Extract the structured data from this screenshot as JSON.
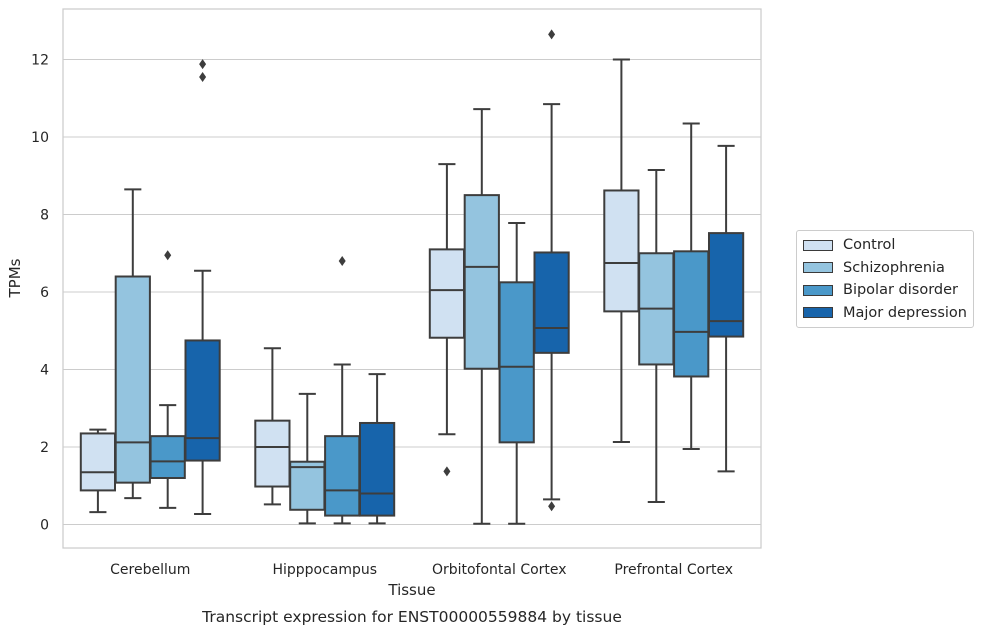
{
  "chart_data": {
    "type": "box",
    "title": "",
    "caption": "Transcript expression for ENST00000559884 by tissue",
    "xlabel": "Tissue",
    "ylabel": "TPMs",
    "ylim": [
      -0.6,
      13.3
    ],
    "yticks": [
      0,
      2,
      4,
      6,
      8,
      10,
      12
    ],
    "grid": true,
    "legend_position": "right",
    "categories": [
      "Cerebellum",
      "Hipppocampus",
      "Orbitofontal Cortex",
      "Prefrontal Cortex"
    ],
    "series": [
      {
        "name": "Control",
        "color": "#d0e1f2",
        "boxes": [
          {
            "whislo": 0.32,
            "q1": 0.88,
            "med": 1.35,
            "q3": 2.35,
            "whishi": 2.45,
            "fliers": []
          },
          {
            "whislo": 0.52,
            "q1": 0.98,
            "med": 2.0,
            "q3": 2.68,
            "whishi": 4.55,
            "fliers": []
          },
          {
            "whislo": 2.33,
            "q1": 4.82,
            "med": 6.05,
            "q3": 7.1,
            "whishi": 9.3,
            "fliers": [
              1.37
            ]
          },
          {
            "whislo": 2.13,
            "q1": 5.5,
            "med": 6.75,
            "q3": 8.62,
            "whishi": 12.0,
            "fliers": []
          }
        ]
      },
      {
        "name": "Schizophrenia",
        "color": "#94c4df",
        "boxes": [
          {
            "whislo": 0.68,
            "q1": 1.08,
            "med": 2.12,
            "q3": 6.4,
            "whishi": 8.65,
            "fliers": []
          },
          {
            "whislo": 0.03,
            "q1": 0.38,
            "med": 1.48,
            "q3": 1.62,
            "whishi": 3.37,
            "fliers": []
          },
          {
            "whislo": 0.02,
            "q1": 4.02,
            "med": 6.65,
            "q3": 8.5,
            "whishi": 10.72,
            "fliers": []
          },
          {
            "whislo": 0.58,
            "q1": 4.13,
            "med": 5.57,
            "q3": 7.0,
            "whishi": 9.15,
            "fliers": []
          }
        ]
      },
      {
        "name": "Bipolar disorder",
        "color": "#4a98c9",
        "boxes": [
          {
            "whislo": 0.43,
            "q1": 1.2,
            "med": 1.63,
            "q3": 2.28,
            "whishi": 3.08,
            "fliers": [
              6.95
            ]
          },
          {
            "whislo": 0.03,
            "q1": 0.23,
            "med": 0.88,
            "q3": 2.28,
            "whishi": 4.13,
            "fliers": [
              6.8
            ]
          },
          {
            "whislo": 0.02,
            "q1": 2.12,
            "med": 4.07,
            "q3": 6.25,
            "whishi": 7.78,
            "fliers": []
          },
          {
            "whislo": 1.95,
            "q1": 3.82,
            "med": 4.97,
            "q3": 7.05,
            "whishi": 10.35,
            "fliers": []
          }
        ]
      },
      {
        "name": "Major depression",
        "color": "#1764ab",
        "boxes": [
          {
            "whislo": 0.27,
            "q1": 1.65,
            "med": 2.23,
            "q3": 4.75,
            "whishi": 6.55,
            "fliers": [
              11.55,
              11.88
            ]
          },
          {
            "whislo": 0.03,
            "q1": 0.23,
            "med": 0.8,
            "q3": 2.62,
            "whishi": 3.88,
            "fliers": []
          },
          {
            "whislo": 0.65,
            "q1": 4.43,
            "med": 5.07,
            "q3": 7.02,
            "whishi": 10.85,
            "fliers": [
              0.47,
              12.65
            ]
          },
          {
            "whislo": 1.37,
            "q1": 4.85,
            "med": 5.25,
            "q3": 7.52,
            "whishi": 9.77,
            "fliers": []
          }
        ]
      }
    ]
  }
}
